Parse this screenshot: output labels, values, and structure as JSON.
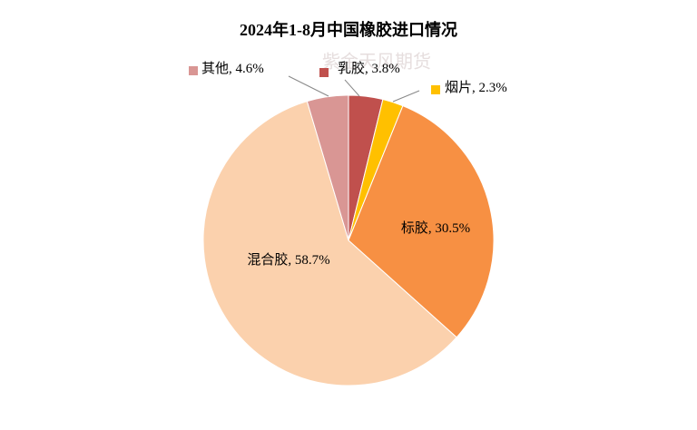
{
  "chart_data": {
    "type": "pie",
    "title": "2024年1-8月中国橡胶进口情况",
    "watermark": "紫金天风期货",
    "label_separator": ", ",
    "categories": [
      "乳胶",
      "烟片",
      "标胶",
      "混合胶",
      "其他"
    ],
    "values": [
      3.8,
      2.3,
      30.5,
      58.7,
      4.6
    ],
    "value_labels": [
      "3.8%",
      "2.3%",
      "30.5%",
      "58.7%",
      "4.6%"
    ],
    "colors": [
      "#c0504d",
      "#ffc000",
      "#f79043",
      "#fbd1ad",
      "#d99694"
    ]
  }
}
